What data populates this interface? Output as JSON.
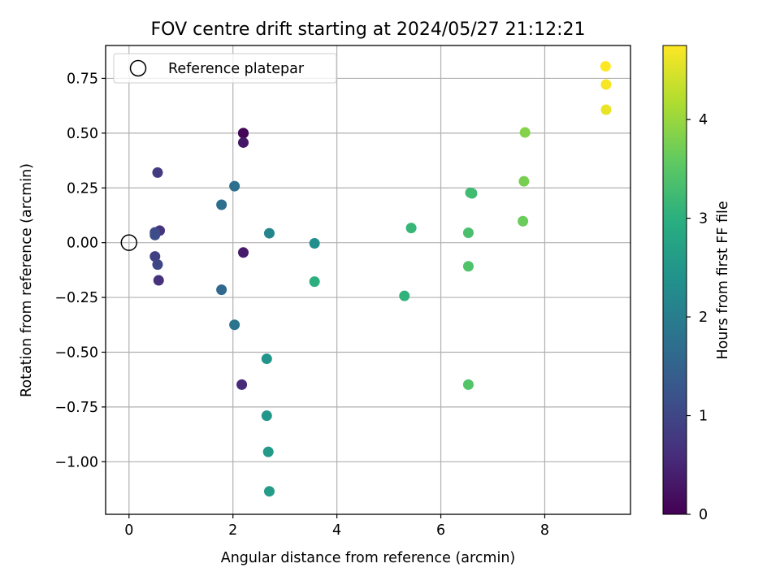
{
  "chart_data": {
    "type": "scatter",
    "title": "FOV centre drift starting at 2024/05/27 21:12:21",
    "xlabel": "Angular distance from reference (arcmin)",
    "ylabel": "Rotation from reference (arcmin)",
    "xlim": [
      -0.45,
      9.65
    ],
    "ylim": [
      -1.24,
      0.9
    ],
    "x_ticks": [
      0,
      2,
      4,
      6,
      8
    ],
    "y_ticks": [
      0.75,
      0.5,
      0.25,
      0.0,
      -0.25,
      -0.5,
      -0.75,
      -1.0
    ],
    "y_tick_labels": [
      "0.75",
      "0.50",
      "0.25",
      "0.00",
      "−0.25",
      "−0.50",
      "−0.75",
      "−1.00"
    ],
    "grid": true,
    "legend": {
      "location": "upper-left",
      "entries": [
        {
          "label": "Reference platepar",
          "marker": "hollow-circle",
          "x": 0,
          "y": 0
        }
      ]
    },
    "colorbar": {
      "label": "Hours from first FF file",
      "colormap": "viridis",
      "range": [
        0,
        4.75
      ],
      "ticks": [
        0,
        1,
        2,
        3,
        4
      ]
    },
    "points": [
      {
        "x": 2.2,
        "y": 0.5,
        "hours": 0.0
      },
      {
        "x": 2.2,
        "y": 0.5,
        "hours": 0.05
      },
      {
        "x": 2.2,
        "y": 0.457,
        "hours": 0.3
      },
      {
        "x": 2.2,
        "y": -0.045,
        "hours": 0.35
      },
      {
        "x": 2.17,
        "y": -0.648,
        "hours": 0.55
      },
      {
        "x": 0.57,
        "y": -0.172,
        "hours": 0.65
      },
      {
        "x": 0.59,
        "y": 0.055,
        "hours": 0.7
      },
      {
        "x": 0.55,
        "y": 0.32,
        "hours": 0.8
      },
      {
        "x": 0.5,
        "y": -0.063,
        "hours": 0.9
      },
      {
        "x": 0.55,
        "y": -0.1,
        "hours": 1.0
      },
      {
        "x": 0.5,
        "y": 0.047,
        "hours": 1.05
      },
      {
        "x": 0.5,
        "y": 0.035,
        "hours": 1.1
      },
      {
        "x": 1.78,
        "y": -0.215,
        "hours": 1.6
      },
      {
        "x": 1.78,
        "y": 0.173,
        "hours": 1.7
      },
      {
        "x": 2.03,
        "y": 0.258,
        "hours": 1.75
      },
      {
        "x": 2.03,
        "y": -0.375,
        "hours": 1.8
      },
      {
        "x": 2.7,
        "y": 0.043,
        "hours": 2.15
      },
      {
        "x": 3.57,
        "y": -0.003,
        "hours": 2.35
      },
      {
        "x": 2.65,
        "y": -0.53,
        "hours": 2.45
      },
      {
        "x": 2.65,
        "y": -0.79,
        "hours": 2.5
      },
      {
        "x": 2.68,
        "y": -0.955,
        "hours": 2.55
      },
      {
        "x": 2.7,
        "y": -1.135,
        "hours": 2.6
      },
      {
        "x": 3.57,
        "y": -0.178,
        "hours": 3.0
      },
      {
        "x": 5.3,
        "y": -0.243,
        "hours": 3.05
      },
      {
        "x": 5.43,
        "y": 0.067,
        "hours": 3.15
      },
      {
        "x": 6.6,
        "y": 0.225,
        "hours": 3.2
      },
      {
        "x": 6.57,
        "y": 0.228,
        "hours": 3.25
      },
      {
        "x": 6.53,
        "y": 0.045,
        "hours": 3.35
      },
      {
        "x": 6.53,
        "y": -0.108,
        "hours": 3.4
      },
      {
        "x": 6.53,
        "y": -0.648,
        "hours": 3.45
      },
      {
        "x": 7.58,
        "y": 0.098,
        "hours": 3.65
      },
      {
        "x": 7.6,
        "y": 0.28,
        "hours": 3.75
      },
      {
        "x": 7.62,
        "y": 0.503,
        "hours": 3.85
      },
      {
        "x": 9.18,
        "y": 0.607,
        "hours": 4.6
      },
      {
        "x": 9.18,
        "y": 0.722,
        "hours": 4.7
      },
      {
        "x": 9.17,
        "y": 0.805,
        "hours": 4.75
      }
    ]
  }
}
